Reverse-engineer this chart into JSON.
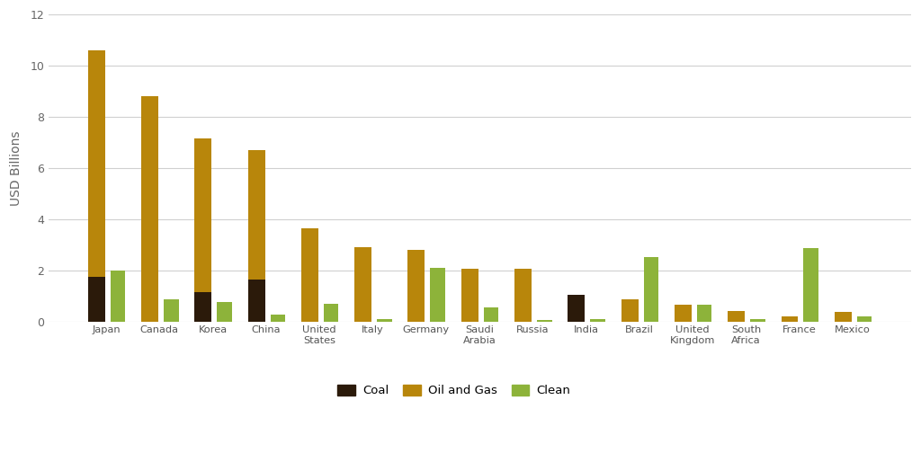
{
  "countries": [
    "Japan",
    "Canada",
    "Korea",
    "China",
    "United\nStates",
    "Italy",
    "Germany",
    "Saudi\nArabia",
    "Russia",
    "India",
    "Brazil",
    "United\nKingdom",
    "South\nAfrica",
    "France",
    "Mexico"
  ],
  "coal": [
    1.75,
    0.0,
    1.15,
    1.65,
    0.0,
    0.0,
    0.0,
    0.0,
    0.0,
    1.05,
    0.0,
    0.0,
    0.0,
    0.0,
    0.0
  ],
  "oil_and_gas": [
    10.6,
    8.8,
    7.15,
    6.7,
    3.65,
    2.9,
    2.8,
    2.05,
    2.05,
    0.0,
    0.85,
    0.65,
    0.4,
    0.2,
    0.38
  ],
  "clean": [
    2.0,
    0.85,
    0.75,
    0.25,
    0.7,
    0.1,
    2.1,
    0.55,
    0.05,
    0.08,
    2.5,
    0.65,
    0.1,
    2.85,
    0.18
  ],
  "coal_color": "#2b1a0a",
  "oil_gas_color": "#b8860b",
  "clean_color": "#8db33a",
  "ylabel": "USD Billions",
  "ylim": [
    0,
    12
  ],
  "yticks": [
    0,
    2,
    4,
    6,
    8,
    10,
    12
  ],
  "background_color": "#ffffff",
  "grid_color": "#d0d0d0",
  "fossil_bar_width": 0.32,
  "clean_bar_width": 0.28,
  "legend_labels": [
    "Coal",
    "Oil and Gas",
    "Clean"
  ]
}
